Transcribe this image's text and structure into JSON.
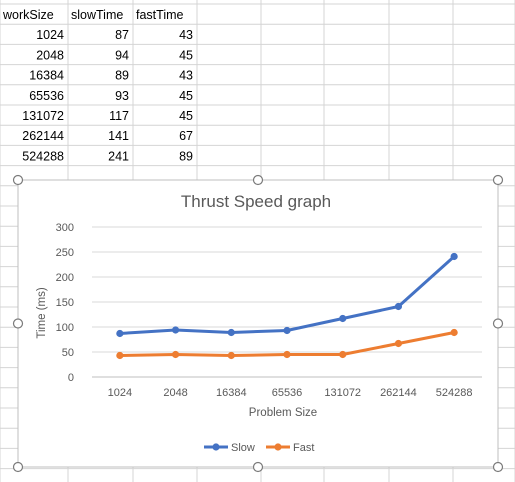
{
  "sheet": {
    "headers": [
      "workSize",
      "slowTime",
      "fastTime"
    ],
    "header_display": [
      "workSize",
      "slowTime",
      "fastTime"
    ],
    "rows": [
      [
        "1024",
        "87",
        "43"
      ],
      [
        "2048",
        "94",
        "45"
      ],
      [
        "16384",
        "89",
        "43"
      ],
      [
        "65536",
        "93",
        "45"
      ],
      [
        "131072",
        "117",
        "45"
      ],
      [
        "262144",
        "141",
        "67"
      ],
      [
        "524288",
        "241",
        "89"
      ]
    ],
    "gridline_color": "#d4d4d4"
  },
  "chart_data": {
    "type": "line",
    "title": "Thrust Speed graph",
    "xlabel": "Problem Size",
    "ylabel": "Time (ms)",
    "categories": [
      "1024",
      "2048",
      "16384",
      "65536",
      "131072",
      "262144",
      "524288"
    ],
    "series": [
      {
        "name": "Slow",
        "color": "#4472c4",
        "values": [
          87,
          94,
          89,
          93,
          117,
          141,
          241
        ]
      },
      {
        "name": "Fast",
        "color": "#ed7d31",
        "values": [
          43,
          45,
          43,
          45,
          45,
          67,
          89
        ]
      }
    ],
    "ylim": [
      0,
      300
    ],
    "yticks": [
      0,
      50,
      100,
      150,
      200,
      250,
      300
    ],
    "grid": true,
    "legend": "bottom",
    "selected": true
  }
}
